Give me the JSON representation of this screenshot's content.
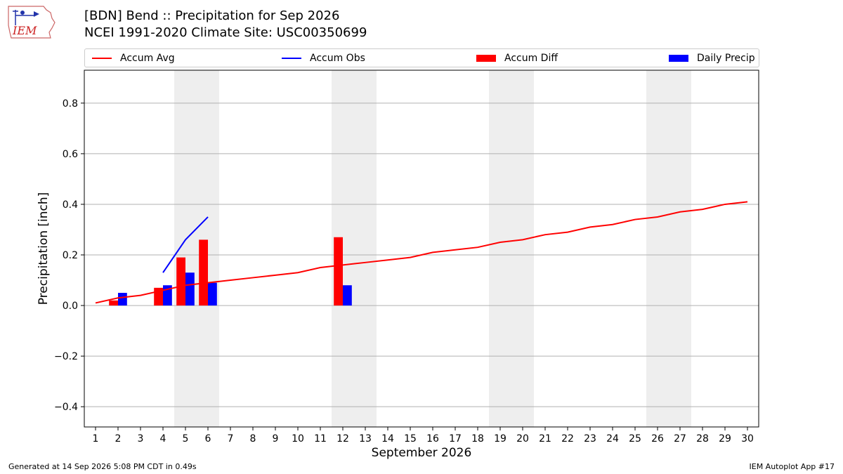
{
  "header": {
    "title_line1": "[BDN] Bend :: Precipitation for Sep 2026",
    "title_line2": "NCEI 1991-2020 Climate Site: USC00350699",
    "logo_text": "IEM"
  },
  "footer": {
    "generated": "Generated at 14 Sep 2026 5:08 PM CDT in 0.49s",
    "app": "IEM Autoplot App #17"
  },
  "colors": {
    "accum_avg": "#ff0000",
    "accum_obs": "#0000ff",
    "accum_diff": "#ff0000",
    "daily_precip": "#0000ff",
    "weekend_shade": "#eeeeee",
    "grid": "#b0b0b0"
  },
  "chart_data": {
    "type": "bar",
    "xlabel": "September 2026",
    "ylabel": "Precipitation [inch]",
    "xlim": [
      0.5,
      30.5
    ],
    "ylim": [
      -0.48,
      0.93
    ],
    "yticks": [
      -0.4,
      -0.2,
      0.0,
      0.2,
      0.4,
      0.6,
      0.8
    ],
    "ytick_labels": [
      "−0.4",
      "−0.2",
      "0.0",
      "0.2",
      "0.4",
      "0.6",
      "0.8"
    ],
    "x": [
      1,
      2,
      3,
      4,
      5,
      6,
      7,
      8,
      9,
      10,
      11,
      12,
      13,
      14,
      15,
      16,
      17,
      18,
      19,
      20,
      21,
      22,
      23,
      24,
      25,
      26,
      27,
      28,
      29,
      30
    ],
    "shaded_days": [
      [
        4.5,
        6.5
      ],
      [
        11.5,
        13.5
      ],
      [
        18.5,
        20.5
      ],
      [
        25.5,
        27.5
      ]
    ],
    "grid": true,
    "legend_position": "top",
    "series": [
      {
        "name": "Accum Avg",
        "kind": "line",
        "x": [
          1,
          2,
          3,
          4,
          5,
          6,
          7,
          8,
          9,
          10,
          11,
          12,
          13,
          14,
          15,
          16,
          17,
          18,
          19,
          20,
          21,
          22,
          23,
          24,
          25,
          26,
          27,
          28,
          29,
          30
        ],
        "values": [
          0.01,
          0.03,
          0.04,
          0.06,
          0.08,
          0.09,
          0.1,
          0.11,
          0.12,
          0.13,
          0.15,
          0.16,
          0.17,
          0.18,
          0.19,
          0.21,
          0.22,
          0.23,
          0.25,
          0.26,
          0.28,
          0.29,
          0.31,
          0.32,
          0.34,
          0.35,
          0.37,
          0.38,
          0.4,
          0.41
        ]
      },
      {
        "name": "Accum Obs",
        "kind": "line",
        "x": [
          4,
          5,
          6
        ],
        "values": [
          0.13,
          0.26,
          0.35
        ]
      },
      {
        "name": "Accum Diff",
        "kind": "bar",
        "x": [
          2,
          4,
          5,
          6,
          12
        ],
        "values": [
          0.02,
          0.07,
          0.19,
          0.26,
          0.27
        ]
      },
      {
        "name": "Daily Precip",
        "kind": "bar",
        "x": [
          2,
          4,
          5,
          6,
          12
        ],
        "values": [
          0.05,
          0.08,
          0.13,
          0.09,
          0.08
        ]
      }
    ]
  }
}
